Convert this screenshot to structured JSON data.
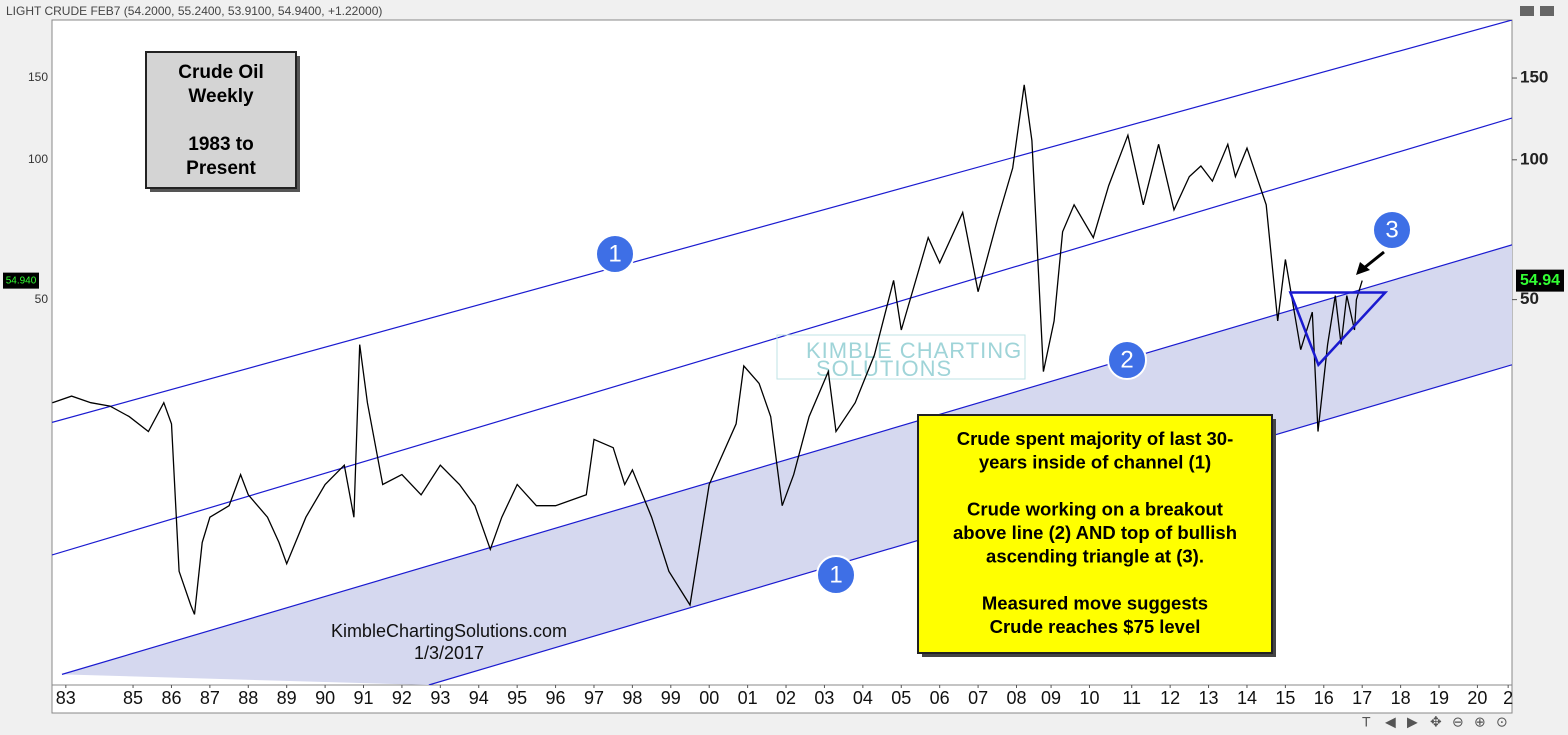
{
  "header": "LIGHT CRUDE FEB7 (54.2000, 55.2400, 53.9100, 54.9400, +1.22000)",
  "chart_data": {
    "type": "line",
    "color": "#000000",
    "log_scale": true,
    "x": [
      1983.4,
      1983.9,
      1984.4,
      1984.9,
      1985.4,
      1985.9,
      1986.3,
      1986.5,
      1986.7,
      1987.0,
      1987.1,
      1987.3,
      1987.5,
      1988.0,
      1988.3,
      1988.5,
      1989.0,
      1989.3,
      1989.5,
      1990.0,
      1990.5,
      1991.0,
      1991.25,
      1991.4,
      1991.6,
      1992.0,
      1992.5,
      1993.0,
      1993.5,
      1994.0,
      1994.4,
      1994.8,
      1995.1,
      1995.5,
      1996.0,
      1996.5,
      1997.3,
      1997.5,
      1998.0,
      1998.3,
      1998.5,
      1999.0,
      1999.45,
      2000.0,
      2000.5,
      2001.2,
      2001.4,
      2001.8,
      2002.1,
      2002.4,
      2002.7,
      2003.1,
      2003.6,
      2003.8,
      2004.3,
      2004.8,
      2005.3,
      2005.5,
      2006.2,
      2006.5,
      2007.1,
      2007.5,
      2008.0,
      2008.4,
      2008.7,
      2008.9,
      2009.2,
      2009.48,
      2009.7,
      2010.0,
      2010.5,
      2010.9,
      2011.4,
      2011.8,
      2012.2,
      2012.6,
      2013.0,
      2013.3,
      2013.6,
      2014.0,
      2014.2,
      2014.5,
      2015.0,
      2015.3,
      2015.5,
      2015.9,
      2016.2,
      2016.35,
      2016.6,
      2016.8,
      2016.95,
      2017.1,
      2017.3,
      2017.35,
      2017.5
    ],
    "values": [
      30,
      31,
      30,
      29.5,
      28,
      26,
      30,
      27,
      13,
      11,
      10.5,
      15,
      17,
      18,
      21,
      19,
      17,
      15,
      13.5,
      17,
      20,
      22,
      17,
      40,
      30,
      20,
      21,
      19,
      22,
      20,
      18,
      14.5,
      17,
      20,
      18,
      18,
      19,
      25,
      24,
      20,
      21.5,
      17,
      13,
      11,
      20,
      27,
      36,
      33,
      28,
      18,
      21,
      28,
      35,
      26,
      30,
      38,
      55,
      43,
      68,
      60,
      77,
      52,
      74,
      96,
      145,
      110,
      35,
      45,
      70,
      80,
      68,
      88,
      113,
      80,
      108,
      78,
      92,
      97,
      90,
      108,
      92,
      106,
      80,
      45,
      61,
      39,
      47,
      26,
      40,
      51,
      40,
      51,
      43,
      50,
      54.94
    ],
    "last_value_labels": [
      "54.940",
      "54.94"
    ],
    "xlim": [
      1983.39,
      2021.4
    ],
    "ylim": [
      7.4,
      200
    ],
    "yticks": [
      50,
      100,
      150
    ],
    "xticks": [
      {
        "value": 1983.75,
        "label": "83"
      },
      {
        "value": 1985.5,
        "label": "85"
      },
      {
        "value": 1986.5,
        "label": "86"
      },
      {
        "value": 1987.5,
        "label": "87"
      },
      {
        "value": 1988.5,
        "label": "88"
      },
      {
        "value": 1989.5,
        "label": "89"
      },
      {
        "value": 1990.5,
        "label": "90"
      },
      {
        "value": 1991.5,
        "label": "91"
      },
      {
        "value": 1992.5,
        "label": "92"
      },
      {
        "value": 1993.5,
        "label": "93"
      },
      {
        "value": 1994.5,
        "label": "94"
      },
      {
        "value": 1995.5,
        "label": "95"
      },
      {
        "value": 1996.5,
        "label": "96"
      },
      {
        "value": 1997.5,
        "label": "97"
      },
      {
        "value": 1998.5,
        "label": "98"
      },
      {
        "value": 1999.5,
        "label": "99"
      },
      {
        "value": 2000.5,
        "label": "00"
      },
      {
        "value": 2001.5,
        "label": "01"
      },
      {
        "value": 2002.5,
        "label": "02"
      },
      {
        "value": 2003.5,
        "label": "03"
      },
      {
        "value": 2004.5,
        "label": "04"
      },
      {
        "value": 2005.5,
        "label": "05"
      },
      {
        "value": 2006.5,
        "label": "06"
      },
      {
        "value": 2007.5,
        "label": "07"
      },
      {
        "value": 2008.5,
        "label": "08"
      },
      {
        "value": 2009.4,
        "label": "09"
      },
      {
        "value": 2010.4,
        "label": "10"
      },
      {
        "value": 2011.5,
        "label": "11"
      },
      {
        "value": 2012.5,
        "label": "12"
      },
      {
        "value": 2013.5,
        "label": "13"
      },
      {
        "value": 2014.5,
        "label": "14"
      },
      {
        "value": 2015.5,
        "label": "15"
      },
      {
        "value": 2016.5,
        "label": "16"
      },
      {
        "value": 2017.5,
        "label": "17"
      },
      {
        "value": 2018.5,
        "label": "18"
      },
      {
        "value": 2019.5,
        "label": "19"
      },
      {
        "value": 2020.5,
        "label": "20"
      },
      {
        "value": 2021.3,
        "label": "2"
      }
    ],
    "channels": [
      {
        "x": [
          1983.39,
          2021.4
        ],
        "values": [
          27.2,
          200
        ]
      },
      {
        "x": [
          1983.39,
          2021.4
        ],
        "values": [
          14.1,
          123
        ]
      },
      {
        "x": [
          1983.65,
          2021.4
        ],
        "values": [
          7.8,
          65.6
        ]
      },
      {
        "x": [
          1993.2,
          2021.4
        ],
        "values": [
          7.4,
          36.2
        ]
      }
    ],
    "triangle": {
      "x": [
        2015.63,
        2018.1,
        2016.36
      ],
      "values": [
        51.8,
        51.8,
        36.2
      ]
    },
    "title_box": [
      "Crude Oil",
      "Weekly",
      "",
      "1983 to",
      "Present"
    ],
    "note_box": [
      "Crude spent majority of last 30-",
      "years inside of channel (1)",
      "",
      "Crude working on a breakout",
      "above line (2) AND top of bullish",
      "ascending triangle at (3).",
      "",
      "Measured move suggests",
      "Crude reaches $75 level"
    ],
    "markers": [
      "1",
      "1",
      "2",
      "3"
    ],
    "watermark": [
      "KIMBLE CHARTING",
      "SOLUTIONS"
    ],
    "footer": [
      "KimbleChartingSolutions.com",
      "1/3/2017"
    ]
  }
}
